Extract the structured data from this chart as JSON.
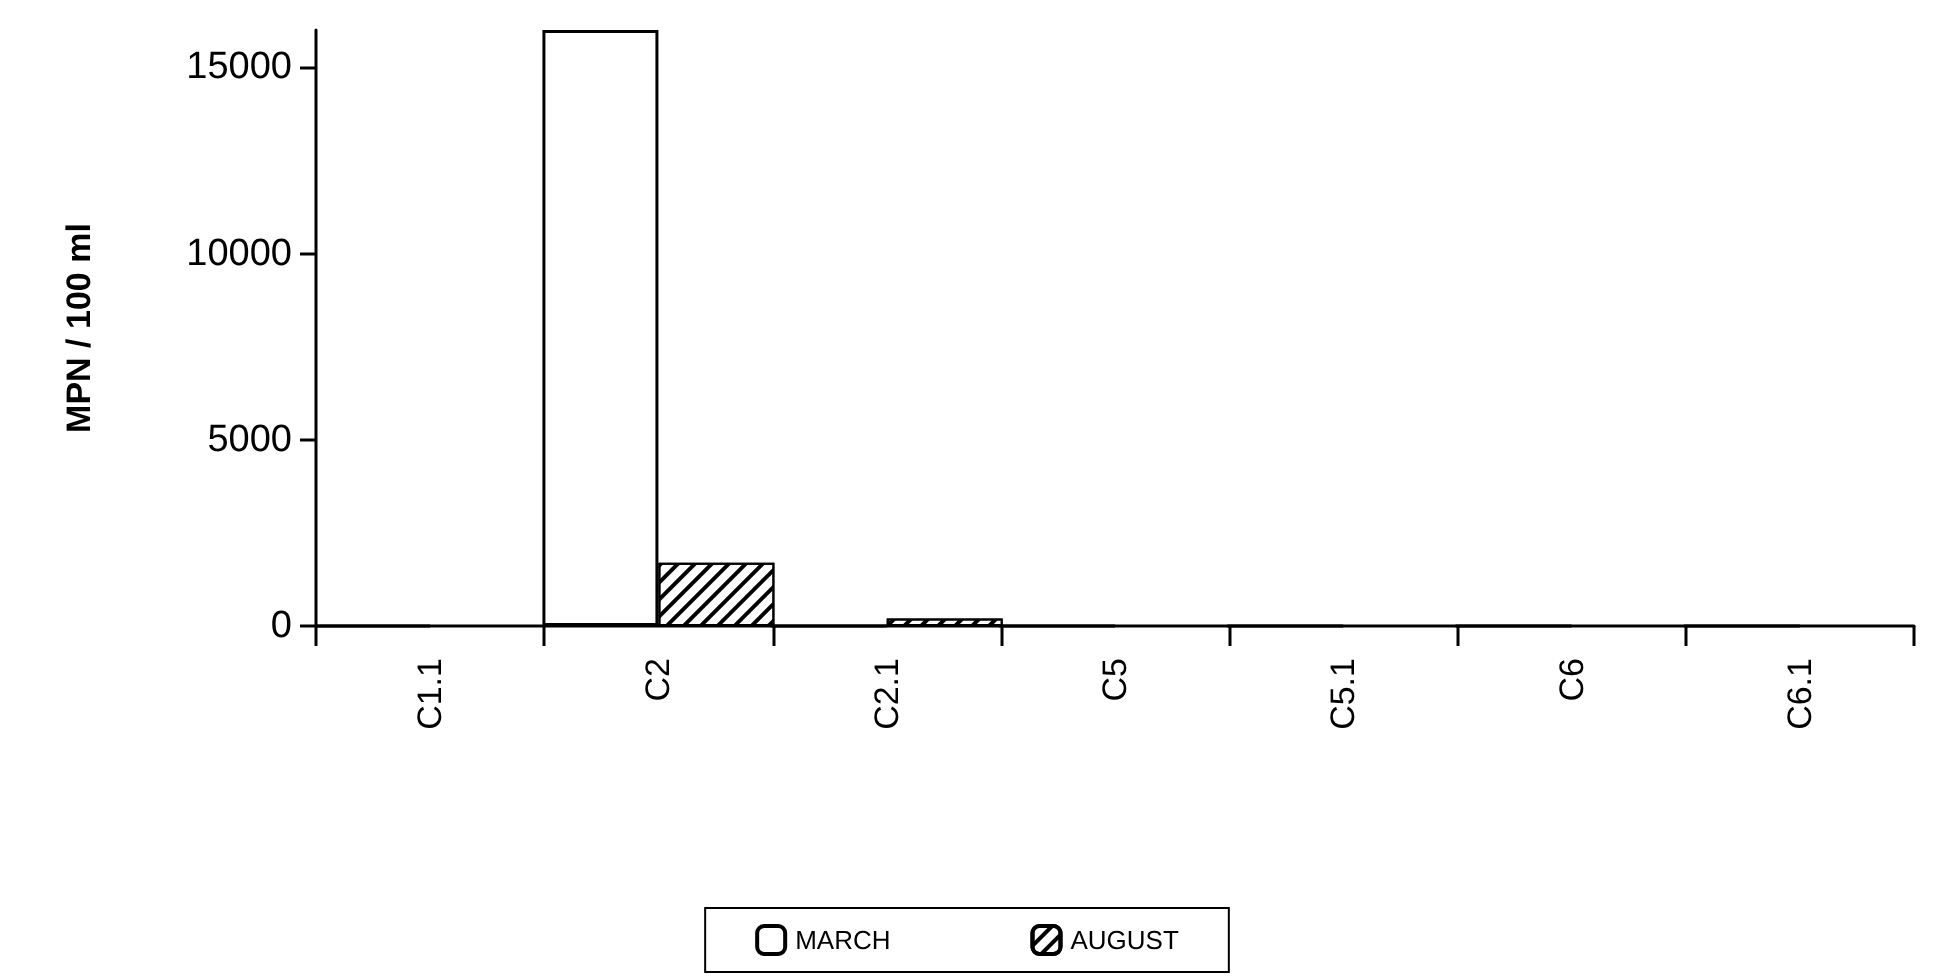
{
  "chart_data": {
    "type": "bar",
    "ylabel": "MPN / 100 ml",
    "categories": [
      "C1.1",
      "C2",
      "C2.1",
      "C5",
      "C5.1",
      "C6",
      "C6.1"
    ],
    "series": [
      {
        "name": "MARCH",
        "color": "#ffffff",
        "values": [
          0,
          16000,
          0,
          0,
          0,
          0,
          0
        ]
      },
      {
        "name": "AUGUST",
        "color": "#000000",
        "values": [
          0,
          1700,
          200,
          0,
          0,
          0,
          0
        ]
      }
    ],
    "ylim": [
      0,
      16000
    ],
    "yticks": [
      0,
      5000,
      10000,
      15000
    ],
    "grid": false,
    "legend": "bottom"
  }
}
